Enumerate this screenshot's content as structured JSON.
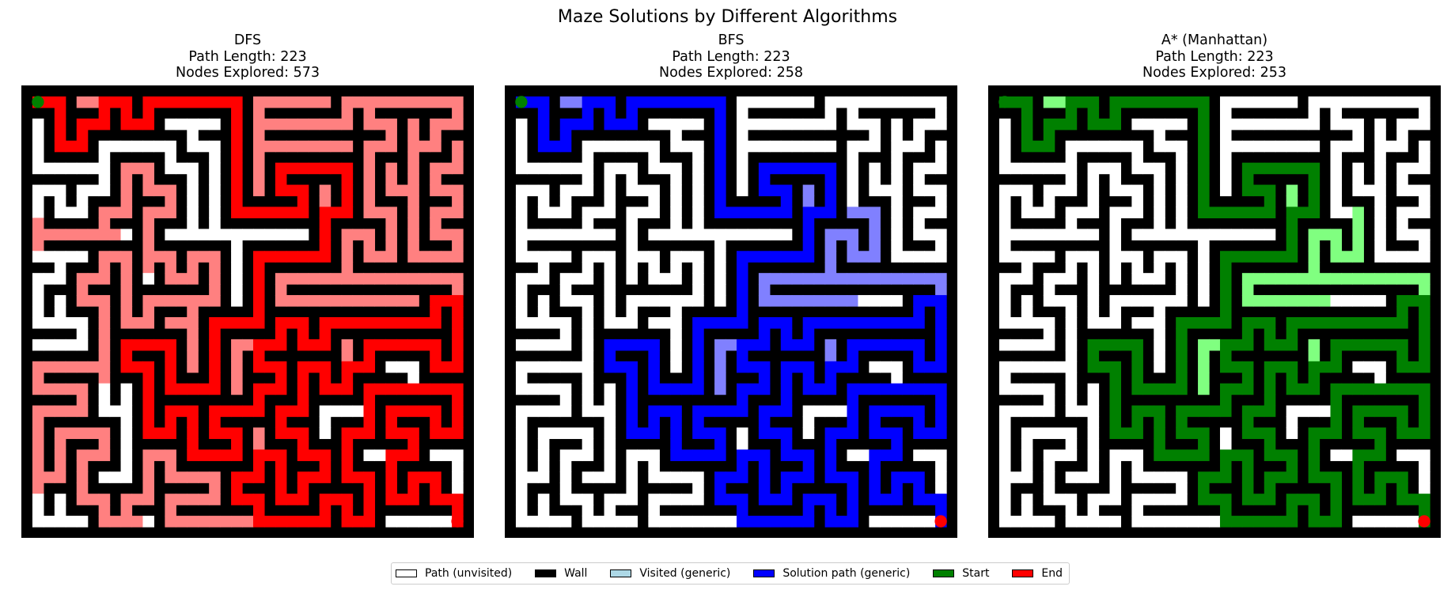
{
  "suptitle": "Maze Solutions by Different Algorithms",
  "panels": [
    {
      "name": "DFS",
      "line2": "Path Length: 223",
      "line3": "Nodes Explored: 573",
      "path_color": "#ff0000",
      "visited_color": "#ff8080"
    },
    {
      "name": "BFS",
      "line2": "Path Length: 223",
      "line3": "Nodes Explored: 258",
      "path_color": "#0000ff",
      "visited_color": "#8080ff"
    },
    {
      "name": "A* (Manhattan)",
      "line2": "Path Length: 223",
      "line3": "Nodes Explored: 253",
      "path_color": "#008000",
      "visited_color": "#80ff80"
    }
  ],
  "colors": {
    "wall": "#000000",
    "open": "#ffffff",
    "start": "#008000",
    "end": "#ff0000"
  },
  "legend": [
    {
      "label": "Path (unvisited)",
      "color": "#ffffff"
    },
    {
      "label": "Wall",
      "color": "#000000"
    },
    {
      "label": "Visited (generic)",
      "color": "#add8e6"
    },
    {
      "label": "Solution path (generic)",
      "color": "#0000ff"
    },
    {
      "label": "Start",
      "color": "#008000"
    },
    {
      "label": "End",
      "color": "#ff0000"
    }
  ],
  "chart_data": {
    "type": "heatmap",
    "title": "Maze Solutions by Different Algorithms",
    "grid_size": [
      41,
      41
    ],
    "start_cell": [
      1,
      1
    ],
    "end_cell": [
      39,
      39
    ],
    "series": [
      {
        "name": "DFS",
        "path_length": 223,
        "nodes_explored": 573
      },
      {
        "name": "BFS",
        "path_length": 223,
        "nodes_explored": 258
      },
      {
        "name": "A* (Manhattan)",
        "path_length": 223,
        "nodes_explored": 253
      }
    ]
  }
}
